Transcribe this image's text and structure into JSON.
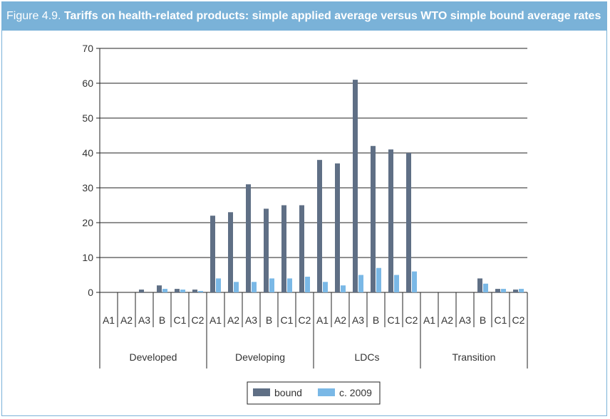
{
  "figure": {
    "label": "Figure 4.9.",
    "title": "Tariffs on health-related products: simple applied average versus WTO simple bound average rates"
  },
  "colors": {
    "header": "#7ab2d8",
    "bound": "#5f6f85",
    "applied": "#7ab8e6"
  },
  "chart_data": {
    "type": "bar",
    "title": "Tariffs on health-related products: simple applied average versus WTO simple bound average rates",
    "ylim": [
      0,
      70
    ],
    "yticks": [
      0,
      10,
      20,
      30,
      40,
      50,
      60,
      70
    ],
    "grid": true,
    "legend_position": "bottom-center",
    "groups": [
      "Developed",
      "Developing",
      "LDCs",
      "Transition"
    ],
    "categories": [
      "A1",
      "A2",
      "A3",
      "B",
      "C1",
      "C2"
    ],
    "series": [
      {
        "name": "bound",
        "values": [
          [
            0,
            0,
            0.8,
            2,
            1,
            0.8
          ],
          [
            22,
            23,
            31,
            24,
            25,
            25
          ],
          [
            38,
            37,
            61,
            42,
            41,
            40
          ],
          [
            0,
            0,
            0,
            4,
            1,
            0.8
          ]
        ]
      },
      {
        "name": "c. 2009",
        "values": [
          [
            0,
            0,
            0,
            1,
            0.8,
            0.4
          ],
          [
            4,
            3,
            3,
            4,
            4,
            4.5
          ],
          [
            3,
            2,
            5,
            7,
            5,
            6
          ],
          [
            0,
            0,
            0,
            2.5,
            1,
            1
          ]
        ]
      }
    ]
  }
}
